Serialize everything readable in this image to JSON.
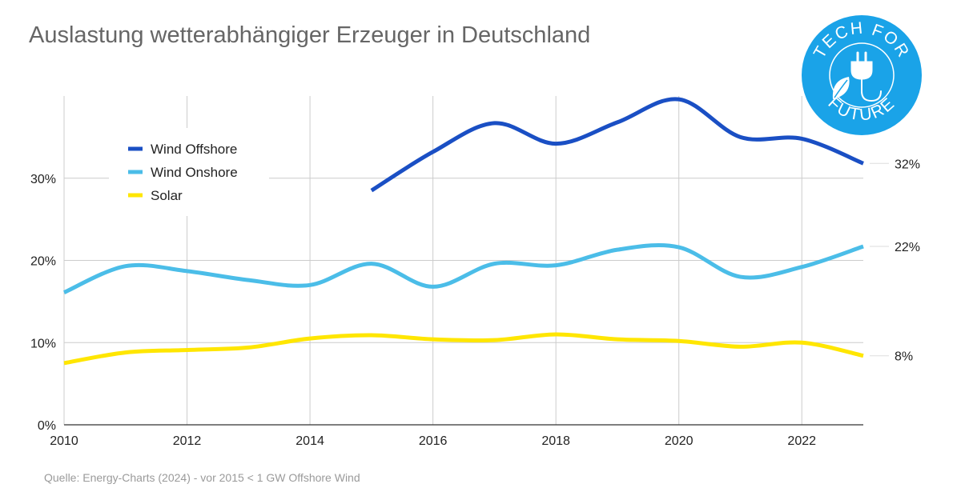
{
  "chart_data": {
    "type": "line",
    "title": "Auslastung wetterabhängiger Erzeuger in Deutschland",
    "source": "Quelle: Energy-Charts (2024) - vor 2015 < 1 GW Offshore Wind",
    "x_ticks": [
      "2010",
      "2012",
      "2014",
      "2016",
      "2018",
      "2020",
      "2022"
    ],
    "y_ticks": [
      "0%",
      "10%",
      "20%",
      "30%"
    ],
    "xlim": [
      2010,
      2023
    ],
    "ylim": [
      0,
      40
    ],
    "grid": true,
    "legend_position": "top-left",
    "series": [
      {
        "name": "Wind Offshore",
        "color": "#1a4fc4",
        "x": [
          2015,
          2016,
          2017,
          2018,
          2019,
          2020,
          2021,
          2022,
          2023
        ],
        "y": [
          28.5,
          33.2,
          36.7,
          34.2,
          36.8,
          39.6,
          35.0,
          34.8,
          31.8
        ],
        "end_label": "32%"
      },
      {
        "name": "Wind Onshore",
        "color": "#4bbde8",
        "x": [
          2010,
          2011,
          2012,
          2013,
          2014,
          2015,
          2016,
          2017,
          2018,
          2019,
          2020,
          2021,
          2022,
          2023
        ],
        "y": [
          16.1,
          19.3,
          18.7,
          17.6,
          17.0,
          19.6,
          16.8,
          19.6,
          19.4,
          21.3,
          21.6,
          18.0,
          19.2,
          21.7
        ],
        "end_label": "22%"
      },
      {
        "name": "Solar",
        "color": "#ffe600",
        "x": [
          2010,
          2011,
          2012,
          2013,
          2014,
          2015,
          2016,
          2017,
          2018,
          2019,
          2020,
          2021,
          2022,
          2023
        ],
        "y": [
          7.5,
          8.8,
          9.1,
          9.4,
          10.5,
          10.9,
          10.4,
          10.3,
          11.0,
          10.4,
          10.2,
          9.5,
          10.0,
          8.4
        ],
        "end_label": "8%"
      }
    ]
  },
  "logo": {
    "text_top": "TECH FOR",
    "text_bottom": "FUTURE",
    "color": "#1aa3e8"
  }
}
